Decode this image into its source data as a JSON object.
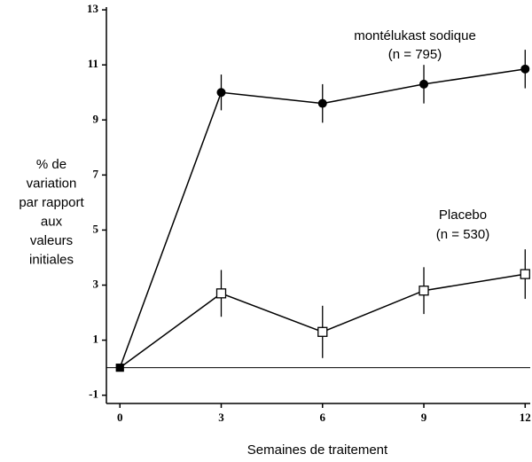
{
  "chart_data": {
    "type": "line",
    "x": [
      0,
      3,
      6,
      9,
      12
    ],
    "xlabel": "Semaines de traitement",
    "ylabel": [
      "% de",
      "variation",
      "par rapport",
      "aux",
      "valeurs",
      "initiales"
    ],
    "xlim": [
      -0.4,
      12.15
    ],
    "xticks": [
      0,
      3,
      6,
      9,
      12
    ],
    "ylim": [
      -1.3,
      13.1
    ],
    "yticks": [
      -1,
      1,
      3,
      5,
      7,
      9,
      11,
      13
    ],
    "reference_line": 0,
    "series": [
      {
        "name": "montélukast sodique",
        "annotation": "(n = 795)",
        "color": "#000000",
        "marker": "filled-circle",
        "values": [
          0,
          10.0,
          9.6,
          10.3,
          10.85
        ],
        "errors": [
          null,
          0.65,
          0.7,
          0.7,
          0.7
        ]
      },
      {
        "name": "Placebo",
        "annotation": "(n = 530)",
        "color": "#000000",
        "marker": "open-square",
        "values": [
          0,
          2.7,
          1.3,
          2.8,
          3.4
        ],
        "errors": [
          null,
          0.85,
          0.95,
          0.85,
          0.9
        ]
      }
    ]
  }
}
